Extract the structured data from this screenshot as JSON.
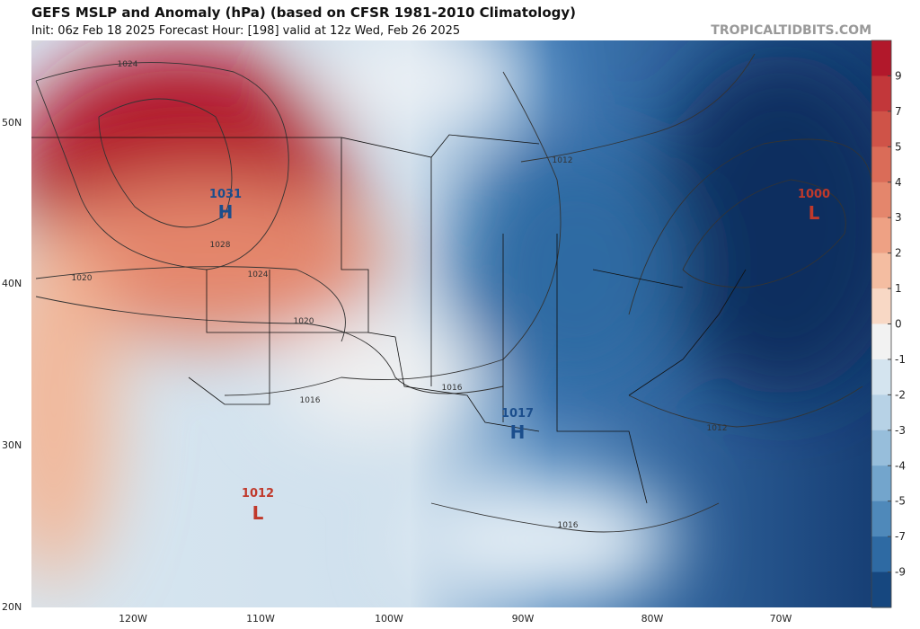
{
  "header": {
    "title": "GEFS MSLP and Anomaly (hPa) (based on CFSR 1981-2010 Climatology)",
    "subtitle": "Init: 06z Feb 18 2025   Forecast Hour: [198]   valid at 12z Wed, Feb 26 2025",
    "watermark": "TROPICALTIDBITS.COM"
  },
  "latitude_labels": [
    "50N",
    "40N",
    "30N",
    "20N"
  ],
  "longitude_labels": [
    "120W",
    "110W",
    "100W",
    "90W",
    "80W",
    "70W"
  ],
  "pressure_centers": [
    {
      "value": "1031",
      "symbol": "H"
    },
    {
      "value": "1000",
      "symbol": "L"
    },
    {
      "value": "1017",
      "symbol": "H"
    },
    {
      "value": "1012",
      "symbol": "L"
    }
  ],
  "contour_labels": [
    "1024",
    "1028",
    "1024",
    "1020",
    "1020",
    "1016",
    "1016",
    "1012",
    "1012",
    "1016"
  ],
  "colorbar": {
    "ticks": [
      9,
      7,
      5,
      4,
      3,
      2,
      1,
      0,
      -1,
      -2,
      -3,
      -4,
      -5,
      -7,
      -9
    ],
    "colors": [
      "#b2182b",
      "#c2373a",
      "#cf5348",
      "#da6c58",
      "#e4866c",
      "#eea184",
      "#f4bda1",
      "#f8d8c5",
      "#f2f2f2",
      "#d4e4ef",
      "#b7d2e6",
      "#97bedb",
      "#73a5cc",
      "#4f89ba",
      "#2e6aa3",
      "#16477f"
    ]
  }
}
